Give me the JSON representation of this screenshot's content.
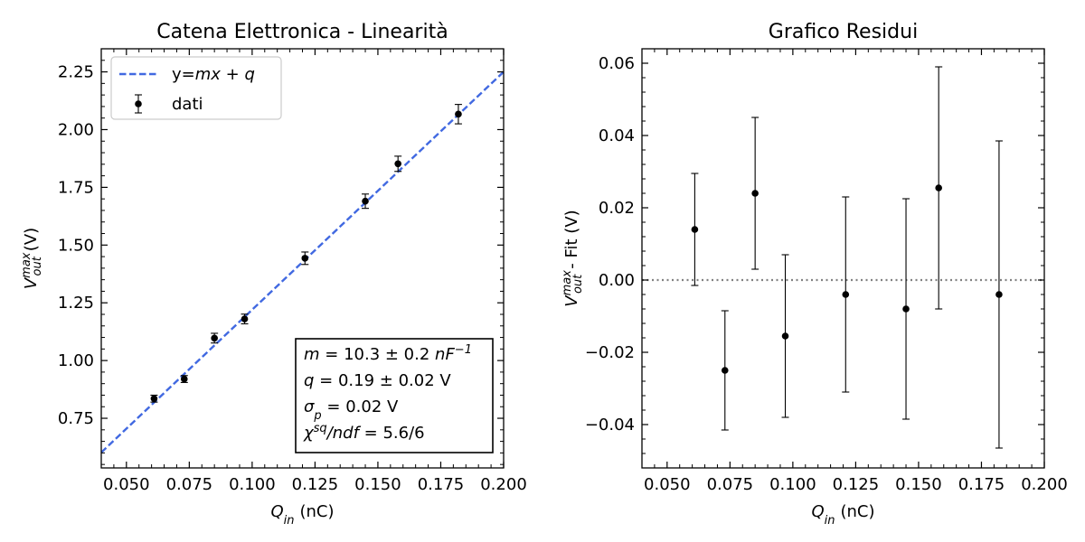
{
  "chart_data": [
    {
      "type": "scatter",
      "title": "Catena Elettronica - Linearità",
      "xlabel": {
        "main": "Q",
        "sub": "in",
        "unit": "(nC)"
      },
      "ylabel": {
        "main": "V",
        "sup": "max",
        "sub": "out",
        "unit": "(V)"
      },
      "xlim": [
        0.04,
        0.2
      ],
      "ylim": [
        0.535,
        2.35
      ],
      "xticks": [
        "0.050",
        "0.075",
        "0.100",
        "0.125",
        "0.150",
        "0.175",
        "0.200"
      ],
      "yticks": [
        "0.75",
        "1.00",
        "1.25",
        "1.50",
        "1.75",
        "2.00",
        "2.25"
      ],
      "legend": {
        "position": "upper-left",
        "entries": [
          {
            "label_prefix": "y=",
            "label_math": "mx + q",
            "kind": "line"
          },
          {
            "label": "dati",
            "kind": "errorbar"
          }
        ]
      },
      "series": [
        {
          "name": "dati",
          "x": [
            0.061,
            0.073,
            0.085,
            0.097,
            0.121,
            0.145,
            0.158,
            0.182
          ],
          "y": [
            0.835,
            0.92,
            1.097,
            1.18,
            1.443,
            1.69,
            1.852,
            2.067
          ],
          "yerr": [
            0.015,
            0.015,
            0.021,
            0.021,
            0.027,
            0.031,
            0.033,
            0.042
          ],
          "color": "#000000"
        }
      ],
      "fit": {
        "m": 10.3,
        "q": 0.19,
        "color": "#4169e1",
        "style": "dashed"
      },
      "annotation": [
        {
          "parts": [
            [
              "m",
              "it"
            ],
            [
              " = 10.3 ± 0.2 ",
              ""
            ],
            [
              "nF",
              "it"
            ],
            [
              "−1",
              "sup"
            ]
          ]
        },
        {
          "parts": [
            [
              "q",
              "it"
            ],
            [
              " = 0.19 ± 0.02 V",
              ""
            ]
          ]
        },
        {
          "parts": [
            [
              "σ",
              "it"
            ],
            [
              "p",
              "sub"
            ],
            [
              " = 0.02 V",
              ""
            ]
          ]
        },
        {
          "parts": [
            [
              "χ",
              "it"
            ],
            [
              "sq",
              "sup"
            ],
            [
              "/ndf",
              "it"
            ],
            [
              " = 5.6/6",
              ""
            ]
          ]
        }
      ]
    },
    {
      "type": "scatter",
      "title": "Grafico Residui",
      "xlabel": {
        "main": "Q",
        "sub": "in",
        "unit": "(nC)"
      },
      "ylabel": {
        "main": "V",
        "sup": "max",
        "sub": "out",
        "unit": "- Fit (V)"
      },
      "xlim": [
        0.04,
        0.2
      ],
      "ylim": [
        -0.052,
        0.064
      ],
      "xticks": [
        "0.050",
        "0.075",
        "0.100",
        "0.125",
        "0.150",
        "0.175",
        "0.200"
      ],
      "yticks": [
        "−0.04",
        "−0.02",
        "0.00",
        "0.02",
        "0.04",
        "0.06"
      ],
      "reference_line": {
        "y": 0,
        "style": "dotted",
        "color": "#808080"
      },
      "series": [
        {
          "name": "residui",
          "x": [
            0.061,
            0.073,
            0.085,
            0.097,
            0.121,
            0.145,
            0.158,
            0.182
          ],
          "y": [
            0.014,
            -0.025,
            0.024,
            -0.0155,
            -0.004,
            -0.008,
            0.0255,
            -0.004
          ],
          "yerr": [
            0.0155,
            0.0165,
            0.021,
            0.0225,
            0.027,
            0.0305,
            0.0335,
            0.0425
          ],
          "color": "#000000"
        }
      ]
    }
  ]
}
